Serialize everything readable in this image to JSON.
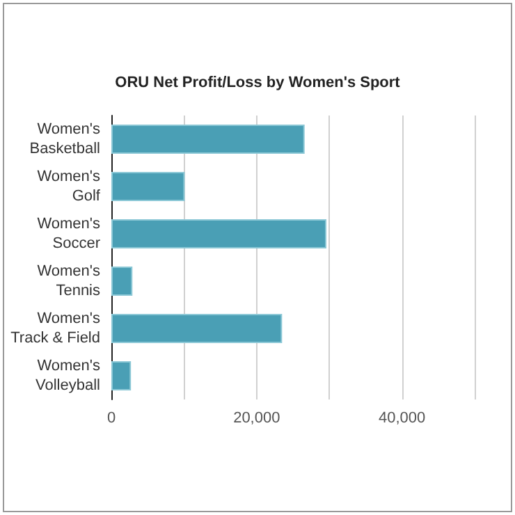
{
  "chart_data": {
    "type": "bar",
    "orientation": "horizontal",
    "title": "ORU Net Profit/Loss by Women's Sport",
    "categories": [
      "Women's Basketball",
      "Women's Golf",
      "Women's Soccer",
      "Women's Tennis",
      "Women's Track & Field",
      "Women's Volleyball"
    ],
    "values": [
      26600,
      10100,
      29600,
      2900,
      23500,
      2700
    ],
    "color": "#4a9fb5",
    "xlim": [
      0,
      50000
    ],
    "xticks": [
      0,
      {
        "value": 10000,
        "label": null
      },
      {
        "value": 20000,
        "label": "20,000"
      },
      {
        "value": 30000,
        "label": null
      },
      {
        "value": 40000,
        "label": "40,000"
      },
      {
        "value": 50000,
        "label": null
      }
    ],
    "grid": "x"
  }
}
